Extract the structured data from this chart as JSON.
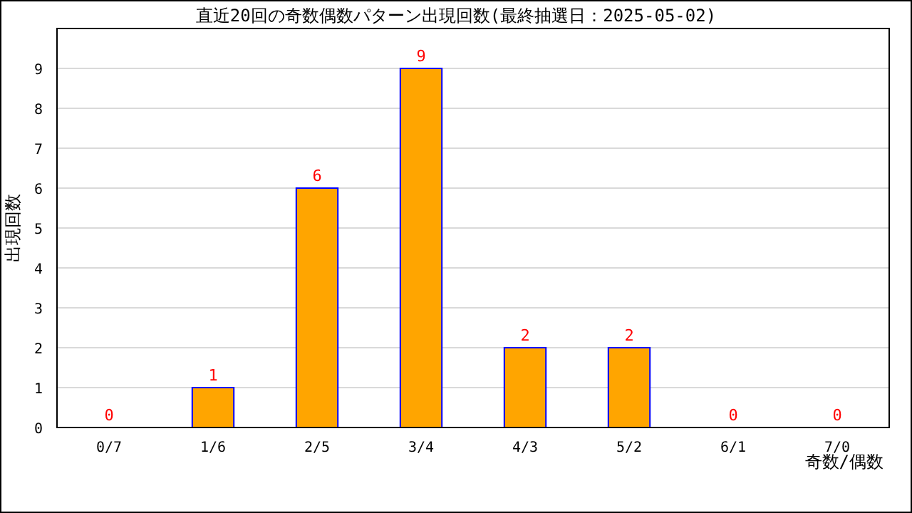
{
  "chart_data": {
    "type": "bar",
    "title": "直近20回の奇数偶数パターン出現回数(最終抽選日：2025-05-02)",
    "xlabel": "奇数/偶数",
    "ylabel": "出現回数",
    "categories": [
      "0/7",
      "1/6",
      "2/5",
      "3/4",
      "4/3",
      "5/2",
      "6/1",
      "7/0"
    ],
    "values": [
      0,
      1,
      6,
      9,
      2,
      2,
      0,
      0
    ],
    "color": "#ffa500",
    "data_labels": true,
    "grid": "y",
    "ylim": [
      0,
      10
    ],
    "yticks": [
      0,
      1,
      2,
      3,
      4,
      5,
      6,
      7,
      8,
      9
    ]
  }
}
